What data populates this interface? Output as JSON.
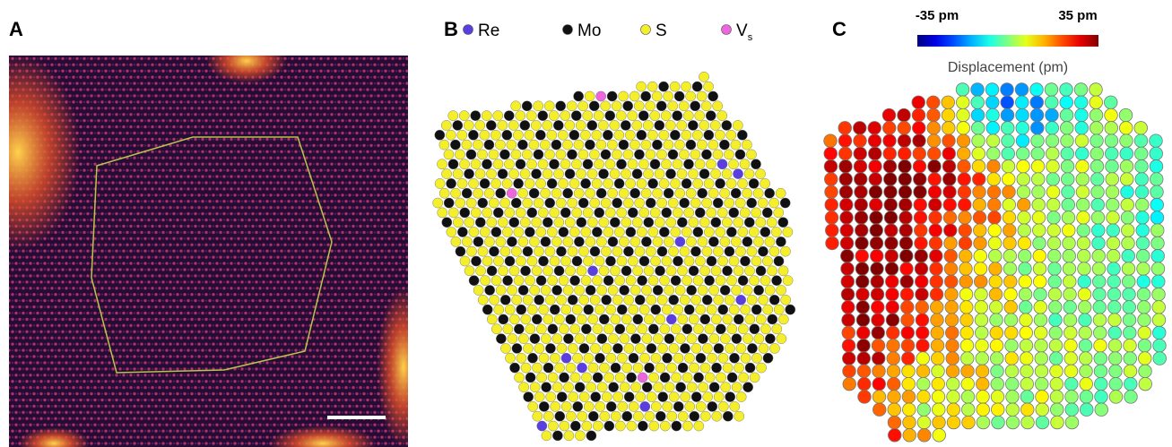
{
  "panels": [
    {
      "label": "A"
    },
    {
      "label": "B",
      "legend": [
        {
          "name": "Re",
          "color": "#5a3ee0"
        },
        {
          "name": "Mo",
          "color": "#111111"
        },
        {
          "name": "S",
          "color": "#f5ee2a"
        },
        {
          "name": "V",
          "subscript": "s",
          "color": "#ee66dd"
        }
      ]
    },
    {
      "label": "C",
      "colorbar": {
        "min_label": "-35 pm",
        "max_label": "35 pm",
        "title": "Displacement (pm)"
      }
    }
  ]
}
